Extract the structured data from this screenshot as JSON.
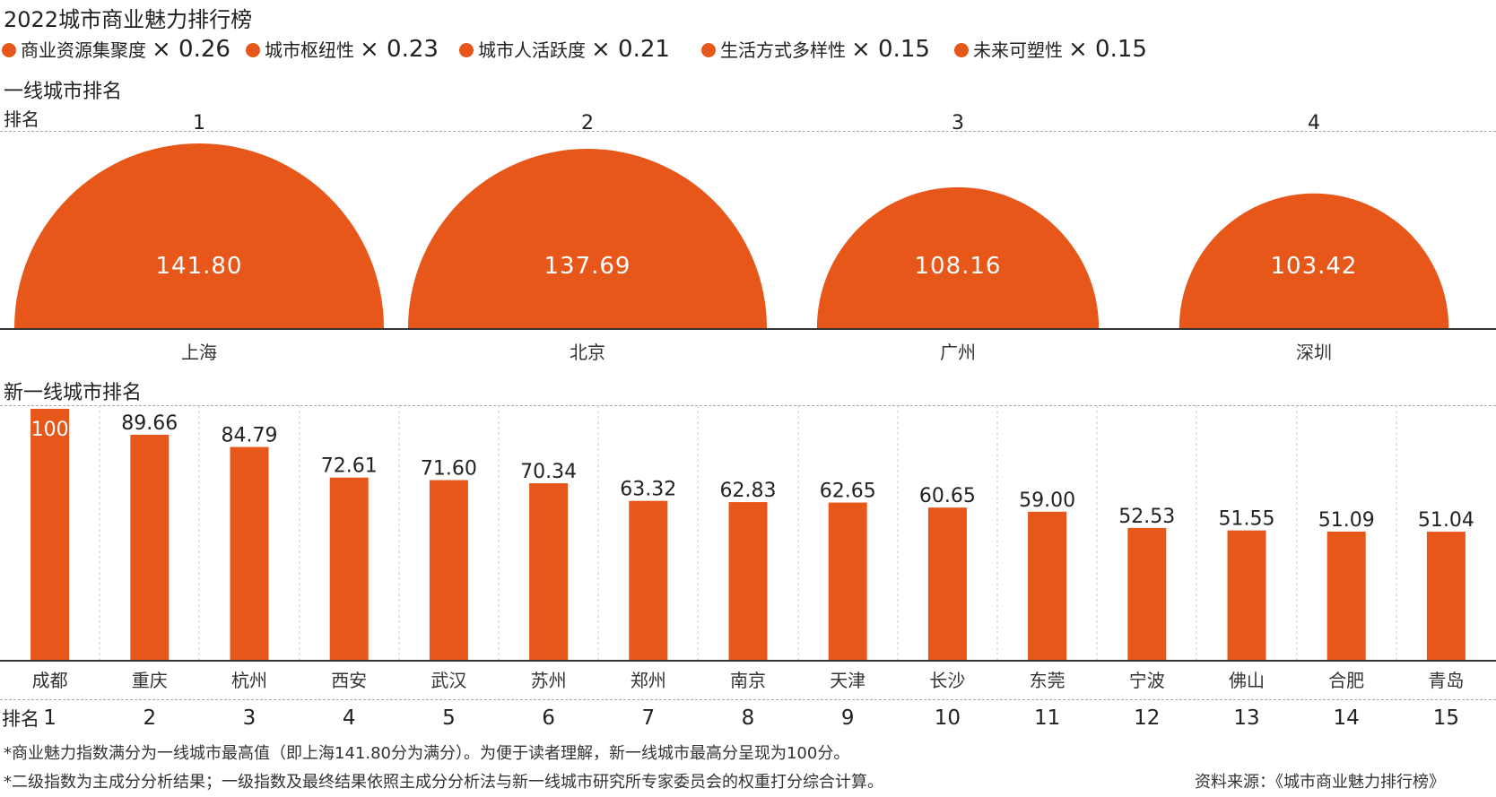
{
  "title": "2022城市商业魅力排行榜",
  "legend": [
    {
      "label": "商业资源集聚度",
      "mult": "× 0.26"
    },
    {
      "label": "城市枢纽性",
      "mult": "× 0.23"
    },
    {
      "label": "城市人活跃度",
      "mult": "× 0.21"
    },
    {
      "label": "生活方式多样性",
      "mult": "× 0.15"
    },
    {
      "label": "未来可塑性",
      "mult": "× 0.15"
    }
  ],
  "tier1": {
    "section_title": "一线城市排名",
    "rank_label": "排名"
  },
  "tier2": {
    "section_title": "新一线城市排名",
    "rank_label": "排名"
  },
  "footnotes": {
    "note1": "*商业魅力指数满分为一线城市最高值（即上海141.80分为满分）。为便于读者理解，新一线城市最高分呈现为100分。",
    "note2": "*二级指数为主成分分析结果；一级指数及最终结果依照主成分分析法与新一线城市研究所专家委员会的权重打分综合计算。",
    "source": "资料来源：《城市商业魅力排行榜》"
  },
  "colors": {
    "accent": "#e8571a",
    "text": "#222222",
    "grid": "#aaaaaa"
  },
  "chart_data": [
    {
      "type": "bar",
      "title": "一线城市排名",
      "categories": [
        "上海",
        "北京",
        "广州",
        "深圳"
      ],
      "ranks": [
        "1",
        "2",
        "3",
        "4"
      ],
      "values": [
        141.8,
        137.69,
        108.16,
        103.42
      ],
      "value_labels": [
        "141.80",
        "137.69",
        "108.16",
        "103.42"
      ],
      "mark_shape": "semicircle"
    },
    {
      "type": "bar",
      "title": "新一线城市排名",
      "categories": [
        "成都",
        "重庆",
        "杭州",
        "西安",
        "武汉",
        "苏州",
        "郑州",
        "南京",
        "天津",
        "长沙",
        "东莞",
        "宁波",
        "佛山",
        "合肥",
        "青岛"
      ],
      "ranks": [
        "1",
        "2",
        "3",
        "4",
        "5",
        "6",
        "7",
        "8",
        "9",
        "10",
        "11",
        "12",
        "13",
        "14",
        "15"
      ],
      "values": [
        100,
        89.66,
        84.79,
        72.61,
        71.6,
        70.34,
        63.32,
        62.83,
        62.65,
        60.65,
        59.0,
        52.53,
        51.55,
        51.09,
        51.04
      ],
      "value_labels": [
        "100",
        "89.66",
        "84.79",
        "72.61",
        "71.60",
        "70.34",
        "63.32",
        "62.83",
        "62.65",
        "60.65",
        "59.00",
        "52.53",
        "51.55",
        "51.09",
        "51.04"
      ],
      "ylim": [
        0,
        100
      ]
    }
  ]
}
